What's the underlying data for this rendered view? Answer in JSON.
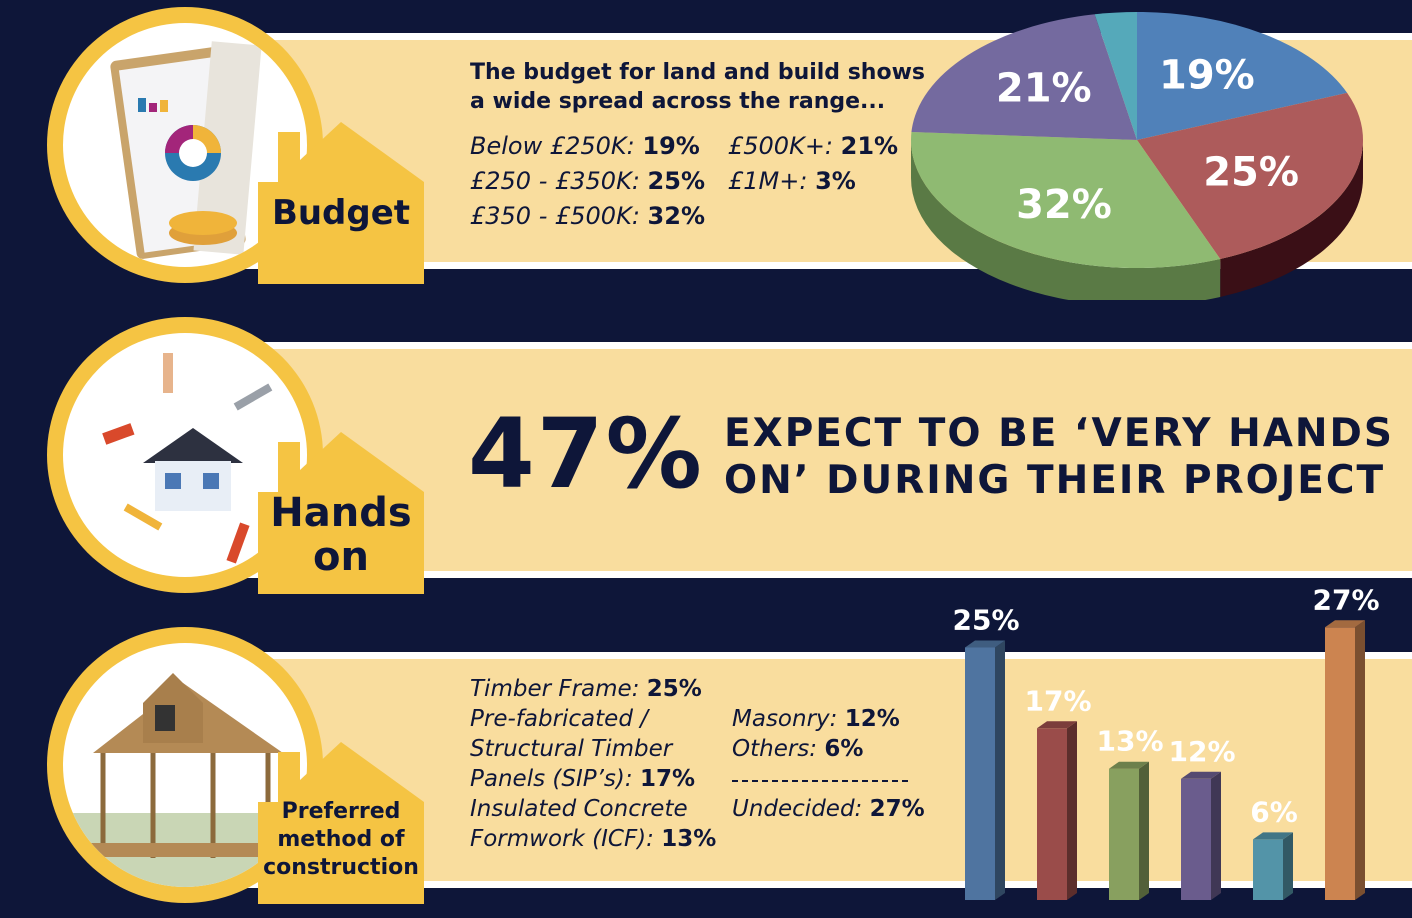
{
  "budget": {
    "badge": "Budget",
    "heading_line1": "The budget for land and build shows",
    "heading_line2": "a wide spread across the range...",
    "items": [
      {
        "label": "Below £250K:",
        "value": "19%"
      },
      {
        "label": "£500K+:",
        "value": "21%"
      },
      {
        "label": "£250 - £350K:",
        "value": "25%"
      },
      {
        "label": "£1M+:",
        "value": "3%"
      },
      {
        "label": "£350 - £500K:",
        "value": "32%"
      }
    ]
  },
  "hands_on": {
    "badge_line1": "Hands",
    "badge_line2": "on",
    "stat": "47%",
    "claim_line1": "EXPECT TO BE ‘VERY HANDS",
    "claim_line2": "ON’ DURING THEIR PROJECT"
  },
  "construction": {
    "badge_line1": "Preferred",
    "badge_line2": "method of",
    "badge_line3": "construction",
    "left_lines": [
      {
        "label": "Timber Frame:",
        "value": "25%"
      },
      {
        "label": "Pre-fabricated /",
        "value": ""
      },
      {
        "label": "Structural Timber",
        "value": ""
      },
      {
        "label": "Panels (SIP’s):",
        "value": "17%"
      },
      {
        "label": "Insulated Concrete",
        "value": ""
      },
      {
        "label": "Formwork (ICF):",
        "value": "13%"
      }
    ],
    "right_lines": [
      {
        "label": "Masonry:",
        "value": "12%"
      },
      {
        "label": "Others:",
        "value": "6%"
      },
      {
        "label": "Undecided:",
        "value": "27%"
      }
    ]
  },
  "chart_data": [
    {
      "type": "pie",
      "title": "Budget for land and build",
      "categories": [
        "Below £250K",
        "£250 - £350K",
        "£350 - £500K",
        "£500K+",
        "£1M+"
      ],
      "values": [
        19,
        25,
        32,
        21,
        3
      ],
      "labels": [
        "19%",
        "25%",
        "32%",
        "21%",
        ""
      ],
      "colors": [
        "#5081b9",
        "#ad5b5b",
        "#8fba72",
        "#746a9f",
        "#55a9ba"
      ],
      "side_colors": [
        "#2f4f75",
        "#3a0f16",
        "#5a7a45",
        "#3f375f",
        "#2f6b77"
      ]
    },
    {
      "type": "bar",
      "title": "Preferred method of construction",
      "categories": [
        "Timber Frame",
        "SIP's",
        "ICF",
        "Masonry",
        "Others",
        "Undecided"
      ],
      "values": [
        25,
        17,
        13,
        12,
        6,
        27
      ],
      "labels": [
        "25%",
        "17%",
        "13%",
        "12%",
        "6%",
        "27%"
      ],
      "colors": [
        "#4f74a0",
        "#9a4c4a",
        "#88a05f",
        "#6a5c8d",
        "#5394a8",
        "#cc8450"
      ],
      "ylim": [
        0,
        27
      ]
    }
  ]
}
